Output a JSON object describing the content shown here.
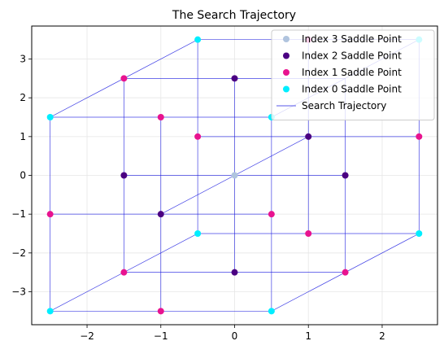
{
  "chart_data": {
    "type": "scatter",
    "title": "The Search Trajectory",
    "xlabel": "",
    "ylabel": "",
    "xlim": [
      -2.75,
      2.75
    ],
    "ylim": [
      -3.85,
      3.85
    ],
    "xticks": [
      -2,
      -1,
      0,
      1,
      2
    ],
    "yticks": [
      -3,
      -2,
      -1,
      0,
      1,
      2,
      3
    ],
    "xtick_labels": [
      "−2",
      "−1",
      "0",
      "1",
      "2"
    ],
    "ytick_labels": [
      "−3",
      "−2",
      "−1",
      "0",
      "1",
      "2",
      "3"
    ],
    "grid": true,
    "legend_position": "top-right",
    "series": [
      {
        "name": "Index 3 Saddle Point",
        "color": "#b0c4de",
        "points": [
          [
            0,
            0
          ]
        ]
      },
      {
        "name": "Index 2 Saddle Point",
        "color": "#4b0082",
        "points": [
          [
            -1.5,
            0
          ],
          [
            1.5,
            0
          ],
          [
            0,
            2.5
          ],
          [
            0,
            -2.5
          ],
          [
            1,
            1
          ],
          [
            -1,
            -1
          ]
        ]
      },
      {
        "name": "Index 1 Saddle Point",
        "color": "#e8138f",
        "points": [
          [
            -1.5,
            2.5
          ],
          [
            1,
            3.5
          ],
          [
            -1,
            1.5
          ],
          [
            -0.5,
            1
          ],
          [
            2.5,
            1
          ],
          [
            -2.5,
            -1
          ],
          [
            0.5,
            -1
          ],
          [
            1,
            -1.5
          ],
          [
            -1.5,
            -2.5
          ],
          [
            1.5,
            -2.5
          ],
          [
            -1,
            -3.5
          ]
        ]
      },
      {
        "name": "Index 0 Saddle Point",
        "color": "#00eeff",
        "points": [
          [
            -2.5,
            1.5
          ],
          [
            0.5,
            1.5
          ],
          [
            -0.5,
            3.5
          ],
          [
            2.5,
            3.5
          ],
          [
            -2.5,
            -3.5
          ],
          [
            0.5,
            -3.5
          ],
          [
            -0.5,
            -1.5
          ],
          [
            2.5,
            -1.5
          ]
        ]
      }
    ],
    "trajectory": {
      "name": "Search Trajectory",
      "color": "#2020e0",
      "segments": [
        [
          [
            -2.5,
            -3.5
          ],
          [
            0.5,
            -3.5
          ]
        ],
        [
          [
            -2.5,
            1.5
          ],
          [
            0.5,
            1.5
          ]
        ],
        [
          [
            -0.5,
            -1.5
          ],
          [
            2.5,
            -1.5
          ]
        ],
        [
          [
            -0.5,
            3.5
          ],
          [
            2.5,
            3.5
          ]
        ],
        [
          [
            -2.5,
            -3.5
          ],
          [
            -2.5,
            1.5
          ]
        ],
        [
          [
            0.5,
            -3.5
          ],
          [
            0.5,
            1.5
          ]
        ],
        [
          [
            -0.5,
            -1.5
          ],
          [
            -0.5,
            3.5
          ]
        ],
        [
          [
            2.5,
            -1.5
          ],
          [
            2.5,
            3.5
          ]
        ],
        [
          [
            -2.5,
            -3.5
          ],
          [
            -0.5,
            -1.5
          ]
        ],
        [
          [
            0.5,
            -3.5
          ],
          [
            2.5,
            -1.5
          ]
        ],
        [
          [
            -2.5,
            1.5
          ],
          [
            -0.5,
            3.5
          ]
        ],
        [
          [
            0.5,
            1.5
          ],
          [
            2.5,
            3.5
          ]
        ],
        [
          [
            -1.5,
            -2.5
          ],
          [
            1.5,
            -2.5
          ]
        ],
        [
          [
            -1.5,
            2.5
          ],
          [
            1.5,
            2.5
          ]
        ],
        [
          [
            -2.5,
            -1
          ],
          [
            0.5,
            -1
          ]
        ],
        [
          [
            -0.5,
            1
          ],
          [
            2.5,
            1
          ]
        ],
        [
          [
            -1.5,
            -2.5
          ],
          [
            -1.5,
            2.5
          ]
        ],
        [
          [
            1.5,
            -2.5
          ],
          [
            1.5,
            2.5
          ]
        ],
        [
          [
            -1,
            -3.5
          ],
          [
            -1,
            1.5
          ]
        ],
        [
          [
            1,
            -1.5
          ],
          [
            1,
            3.5
          ]
        ],
        [
          [
            -1.5,
            0
          ],
          [
            1.5,
            0
          ]
        ],
        [
          [
            -1,
            -1
          ],
          [
            1,
            1
          ]
        ],
        [
          [
            0,
            -2.5
          ],
          [
            0,
            2.5
          ]
        ]
      ]
    }
  }
}
